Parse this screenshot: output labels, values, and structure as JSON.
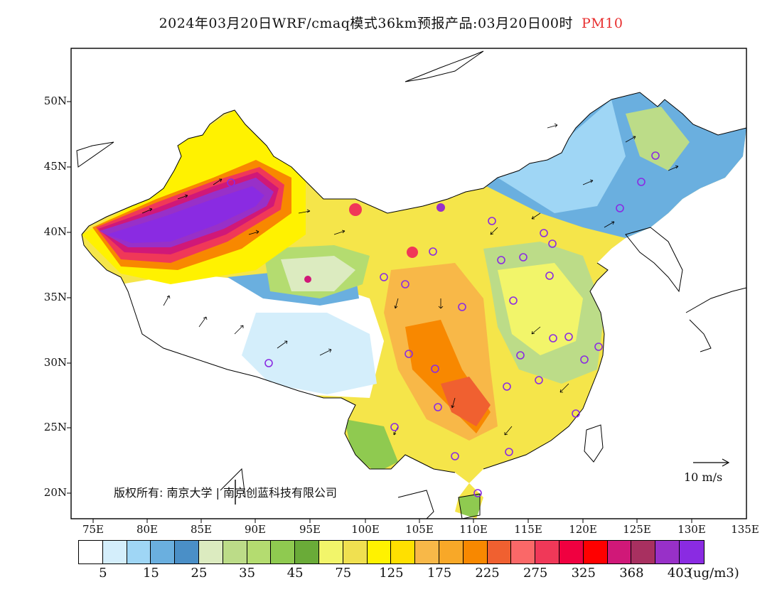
{
  "title": {
    "main": "2024年03月20日WRF/cmaq模式36km预报产品:03月20日00时",
    "variable": "PM10",
    "variable_color": "#e83030"
  },
  "axes": {
    "lon_labels": [
      "75E",
      "80E",
      "85E",
      "90E",
      "95E",
      "100E",
      "105E",
      "110E",
      "115E",
      "120E",
      "125E",
      "130E",
      "135E"
    ],
    "lat_labels": [
      "50N",
      "45N",
      "40N",
      "35N",
      "30N",
      "25N",
      "20N"
    ]
  },
  "colorbar": {
    "colors": [
      "#ffffff",
      "#d4eefb",
      "#9fd6f5",
      "#6aafdf",
      "#4a8fc7",
      "#dcebc0",
      "#bcdc88",
      "#b4dc70",
      "#8fca50",
      "#6aab38",
      "#f2f56a",
      "#f0e050",
      "#fff200",
      "#ffe000",
      "#f8b848",
      "#f8a828",
      "#f88800",
      "#f06030",
      "#fa6868",
      "#f03858",
      "#f00040",
      "#ff0000",
      "#d01878",
      "#a83060",
      "#9830c8",
      "#8a2be2"
    ],
    "tick_labels": [
      "5",
      "15",
      "25",
      "35",
      "45",
      "75",
      "125",
      "175",
      "225",
      "275",
      "325",
      "368",
      "403"
    ],
    "unit": "(ug/m3)"
  },
  "wind_reference": "10 m/s",
  "copyright": "版权所有: 南京大学 | 南京创蓝科技有限公司"
}
